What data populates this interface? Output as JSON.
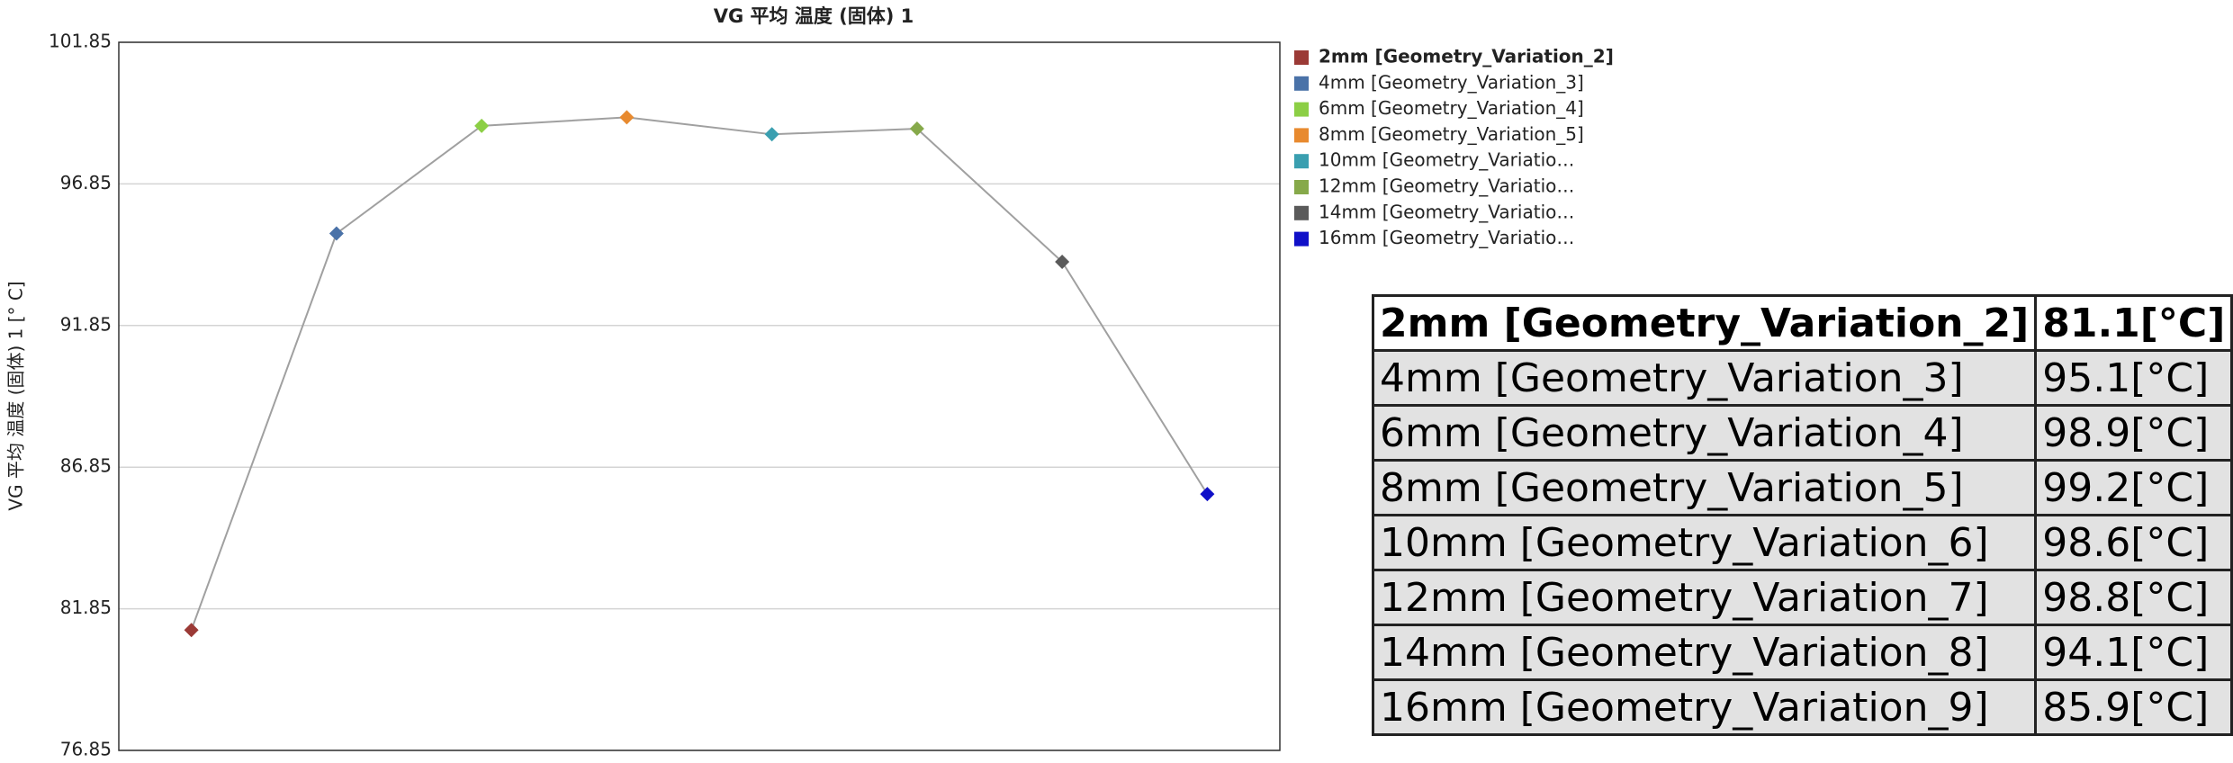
{
  "chart_data": {
    "type": "line",
    "title": "VG 平均 温度 (固体) 1",
    "y_label": "VG 平均 温度 (固体) 1 [° C]",
    "categories": [
      "2mm [Geometry_Variation_2]",
      "4mm [Geometry_Variation_3]",
      "6mm [Geometry_Variation_4]",
      "8mm [Geometry_Variation_5]",
      "10mm [Geometry_Variatio…",
      "12mm [Geometry_Variatio…",
      "14mm [Geometry_Variatio…",
      "16mm [Geometry_Variatio…"
    ],
    "values": [
      81.1,
      95.1,
      98.9,
      99.2,
      98.6,
      98.8,
      94.1,
      85.9
    ],
    "colors": [
      "#9b3a36",
      "#4a72a8",
      "#8ccf45",
      "#e88a2f",
      "#3a9fb0",
      "#86a94a",
      "#5a5a5a",
      "#1010c8"
    ],
    "line_color": "#a0a0a0",
    "ylim": [
      76.85,
      101.85
    ],
    "yticks": [
      76.85,
      81.85,
      86.85,
      91.85,
      96.85,
      101.85
    ],
    "grid": true,
    "legend": "right"
  },
  "table": {
    "rows": [
      [
        "2mm [Geometry_Variation_2]",
        "81.1[°C]"
      ],
      [
        "4mm [Geometry_Variation_3]",
        "95.1[°C]"
      ],
      [
        "6mm [Geometry_Variation_4]",
        "98.9[°C]"
      ],
      [
        "8mm [Geometry_Variation_5]",
        "99.2[°C]"
      ],
      [
        "10mm [Geometry_Variation_6]",
        "98.6[°C]"
      ],
      [
        "12mm [Geometry_Variation_7]",
        "98.8[°C]"
      ],
      [
        "14mm [Geometry_Variation_8]",
        "94.1[°C]"
      ],
      [
        "16mm [Geometry_Variation_9]",
        "85.9[°C]"
      ]
    ]
  }
}
